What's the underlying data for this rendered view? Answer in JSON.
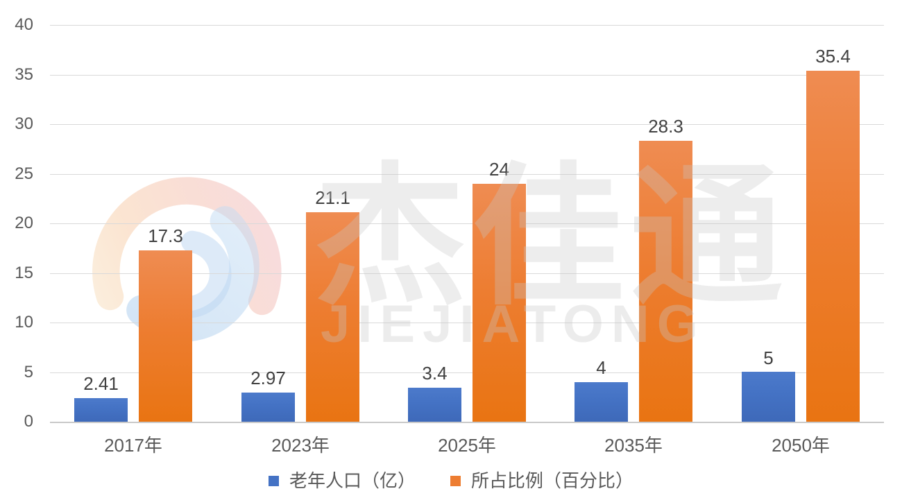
{
  "watermark": {
    "logo": "swirl-logo",
    "text_cn": "杰佳通",
    "text_en": "JIEJIATONG"
  },
  "chart_data": {
    "type": "bar",
    "categories": [
      "2017年",
      "2023年",
      "2025年",
      "2035年",
      "2050年"
    ],
    "series": [
      {
        "name": "老年人口（亿）",
        "color": "#4472C4",
        "values": [
          2.41,
          2.97,
          3.4,
          4,
          5
        ],
        "data_labels": [
          "2.41",
          "2.97",
          "3.4",
          "4",
          "5"
        ]
      },
      {
        "name": "所占比例（百分比）",
        "color": "#ED7D31",
        "values": [
          17.3,
          21.1,
          24,
          28.3,
          35.4
        ],
        "data_labels": [
          "17.3",
          "21.1",
          "24",
          "28.3",
          "35.4"
        ]
      }
    ],
    "ylim": [
      0,
      40
    ],
    "ytick_step": 5,
    "ytick_labels": [
      "40",
      "35",
      "30",
      "25",
      "20",
      "15",
      "10",
      "5",
      "0"
    ],
    "grid": true,
    "legend_position": "bottom",
    "styles": {
      "gridline_color": "#D9D9D9",
      "baseline_color": "#C9C9C9",
      "axis_label_color": "#595959",
      "data_label_color": "#404040"
    }
  }
}
